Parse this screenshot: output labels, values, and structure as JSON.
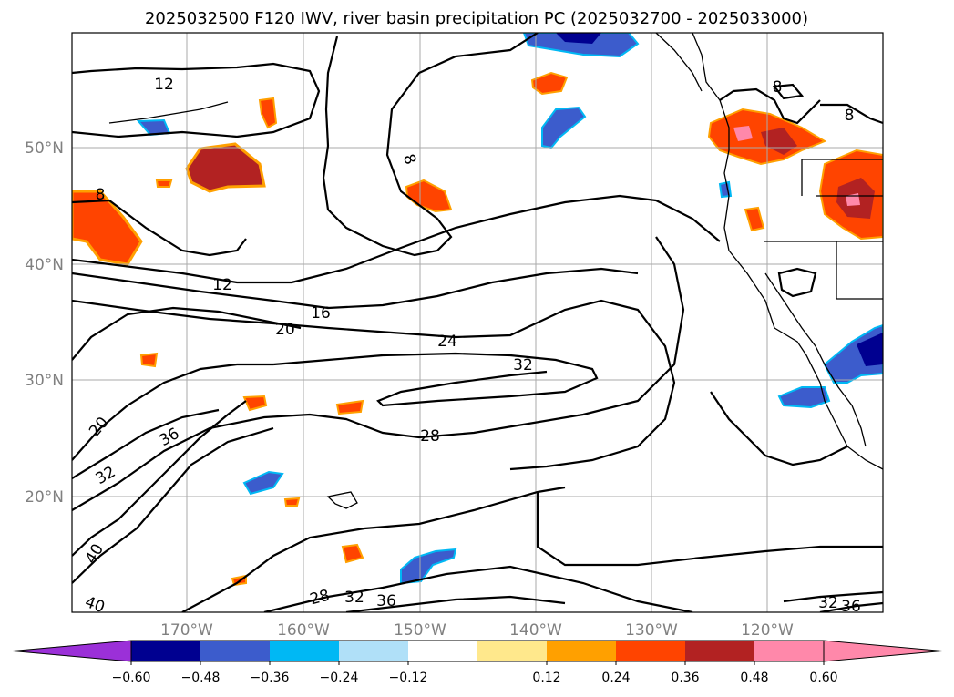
{
  "title": "2025032500 F120 IWV, river basin precipitation PC (2025032700 - 2025033000)",
  "map": {
    "lon_ticks": [
      "170°W",
      "160°W",
      "150°W",
      "140°W",
      "130°W",
      "120°W"
    ],
    "lat_ticks": [
      "50°N",
      "40°N",
      "30°N",
      "20°N"
    ],
    "grid": true,
    "contour_labels": [
      "12",
      "8",
      "8",
      "8",
      "8",
      "12",
      "16",
      "20",
      "24",
      "32",
      "28",
      "20",
      "36",
      "32",
      "40",
      "40",
      "28",
      "32",
      "36",
      "32",
      "36"
    ]
  },
  "colorbar": {
    "ticks": [
      "−0.60",
      "−0.48",
      "−0.36",
      "−0.24",
      "−0.12",
      "0.12",
      "0.24",
      "0.36",
      "0.48",
      "0.60"
    ],
    "colors": {
      "under": "#9b30d8",
      "bins": [
        "#000090",
        "#3c5ccc",
        "#00b8f4",
        "#b0e0f8",
        "#ffffff",
        "#ffe88c",
        "#ffa000",
        "#ff4400",
        "#b22222",
        "#ff88aa"
      ],
      "over": "#ff88aa"
    }
  },
  "shading_colors": {
    "neg_dark": "#000090",
    "neg_mid": "#3c5ccc",
    "neg_light": "#00b8f4",
    "pos_light": "#ffa000",
    "pos_mid": "#ff4400",
    "pos_dark": "#b22222",
    "pos_max": "#ff88aa"
  }
}
